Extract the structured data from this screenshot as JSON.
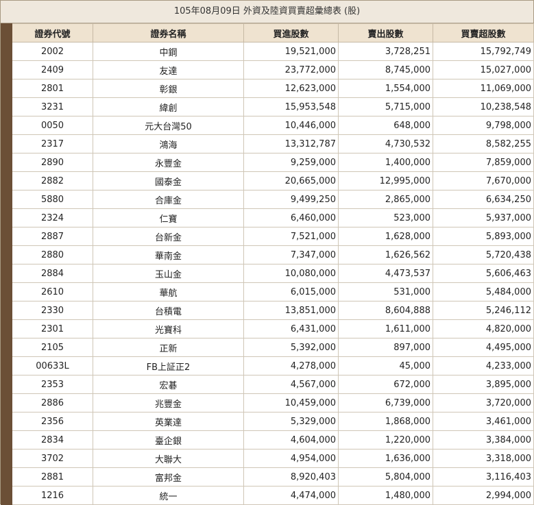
{
  "caption": "105年08月09日 外資及陸資買賣超彙總表 (股)",
  "columns": {
    "code": "證券代號",
    "name": "證券名稱",
    "buy": "買進股數",
    "sell": "賣出股數",
    "net": "買賣超股數"
  },
  "rows": [
    {
      "code": "2002",
      "name": "中鋼",
      "buy": "19,521,000",
      "sell": "3,728,251",
      "net": "15,792,749"
    },
    {
      "code": "2409",
      "name": "友達",
      "buy": "23,772,000",
      "sell": "8,745,000",
      "net": "15,027,000"
    },
    {
      "code": "2801",
      "name": "彰銀",
      "buy": "12,623,000",
      "sell": "1,554,000",
      "net": "11,069,000"
    },
    {
      "code": "3231",
      "name": "緯創",
      "buy": "15,953,548",
      "sell": "5,715,000",
      "net": "10,238,548"
    },
    {
      "code": "0050",
      "name": "元大台灣50",
      "buy": "10,446,000",
      "sell": "648,000",
      "net": "9,798,000"
    },
    {
      "code": "2317",
      "name": "鴻海",
      "buy": "13,312,787",
      "sell": "4,730,532",
      "net": "8,582,255"
    },
    {
      "code": "2890",
      "name": "永豐金",
      "buy": "9,259,000",
      "sell": "1,400,000",
      "net": "7,859,000"
    },
    {
      "code": "2882",
      "name": "國泰金",
      "buy": "20,665,000",
      "sell": "12,995,000",
      "net": "7,670,000"
    },
    {
      "code": "5880",
      "name": "合庫金",
      "buy": "9,499,250",
      "sell": "2,865,000",
      "net": "6,634,250"
    },
    {
      "code": "2324",
      "name": "仁寶",
      "buy": "6,460,000",
      "sell": "523,000",
      "net": "5,937,000"
    },
    {
      "code": "2887",
      "name": "台新金",
      "buy": "7,521,000",
      "sell": "1,628,000",
      "net": "5,893,000"
    },
    {
      "code": "2880",
      "name": "華南金",
      "buy": "7,347,000",
      "sell": "1,626,562",
      "net": "5,720,438"
    },
    {
      "code": "2884",
      "name": "玉山金",
      "buy": "10,080,000",
      "sell": "4,473,537",
      "net": "5,606,463"
    },
    {
      "code": "2610",
      "name": "華航",
      "buy": "6,015,000",
      "sell": "531,000",
      "net": "5,484,000"
    },
    {
      "code": "2330",
      "name": "台積電",
      "buy": "13,851,000",
      "sell": "8,604,888",
      "net": "5,246,112"
    },
    {
      "code": "2301",
      "name": "光寶科",
      "buy": "6,431,000",
      "sell": "1,611,000",
      "net": "4,820,000"
    },
    {
      "code": "2105",
      "name": "正新",
      "buy": "5,392,000",
      "sell": "897,000",
      "net": "4,495,000"
    },
    {
      "code": "00633L",
      "name": "FB上証正2",
      "buy": "4,278,000",
      "sell": "45,000",
      "net": "4,233,000"
    },
    {
      "code": "2353",
      "name": "宏碁",
      "buy": "4,567,000",
      "sell": "672,000",
      "net": "3,895,000"
    },
    {
      "code": "2886",
      "name": "兆豐金",
      "buy": "10,459,000",
      "sell": "6,739,000",
      "net": "3,720,000"
    },
    {
      "code": "2356",
      "name": "英業達",
      "buy": "5,329,000",
      "sell": "1,868,000",
      "net": "3,461,000"
    },
    {
      "code": "2834",
      "name": "臺企銀",
      "buy": "4,604,000",
      "sell": "1,220,000",
      "net": "3,384,000"
    },
    {
      "code": "3702",
      "name": "大聯大",
      "buy": "4,954,000",
      "sell": "1,636,000",
      "net": "3,318,000"
    },
    {
      "code": "2881",
      "name": "富邦金",
      "buy": "8,920,403",
      "sell": "5,804,000",
      "net": "3,116,403"
    },
    {
      "code": "1216",
      "name": "統一",
      "buy": "4,474,000",
      "sell": "1,480,000",
      "net": "2,994,000"
    }
  ]
}
